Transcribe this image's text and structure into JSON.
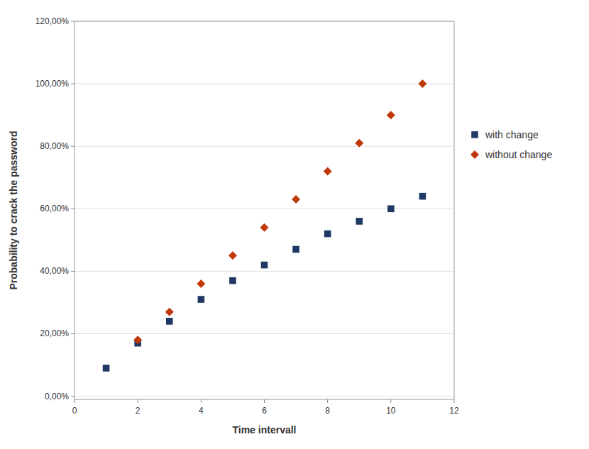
{
  "chart_data": {
    "type": "scatter",
    "x_label": "Time intervall",
    "y_label": "Probability to crack the password",
    "series": [
      {
        "name": "with change",
        "color": "#1F3864",
        "marker": "square",
        "x": [
          1,
          2,
          3,
          4,
          5,
          6,
          7,
          8,
          9,
          10,
          11
        ],
        "values": [
          0.09,
          0.17,
          0.24,
          0.31,
          0.37,
          0.42,
          0.47,
          0.52,
          0.56,
          0.6,
          0.64
        ]
      },
      {
        "name": "without change",
        "color": "#C0390A",
        "marker": "diamond",
        "x": [
          2,
          3,
          4,
          5,
          6,
          7,
          8,
          9,
          10,
          11
        ],
        "values": [
          0.18,
          0.27,
          0.36,
          0.45,
          0.54,
          0.63,
          0.72,
          0.81,
          0.9,
          1.0
        ]
      }
    ],
    "xlim": [
      0,
      12
    ],
    "xticks": [
      0,
      2,
      4,
      6,
      8,
      10,
      12
    ],
    "ylim": [
      -0.01,
      1.2
    ],
    "yticks": [
      {
        "value": 0.0,
        "label": "0,00%"
      },
      {
        "value": 0.2,
        "label": "20,00%"
      },
      {
        "value": 0.4,
        "label": "40,00%"
      },
      {
        "value": 0.6,
        "label": "60,00%"
      },
      {
        "value": 0.8,
        "label": "80,00%"
      },
      {
        "value": 1.0,
        "label": "100,00%"
      },
      {
        "value": 1.2,
        "label": "120,00%"
      }
    ],
    "grid": true,
    "legend": "right"
  }
}
